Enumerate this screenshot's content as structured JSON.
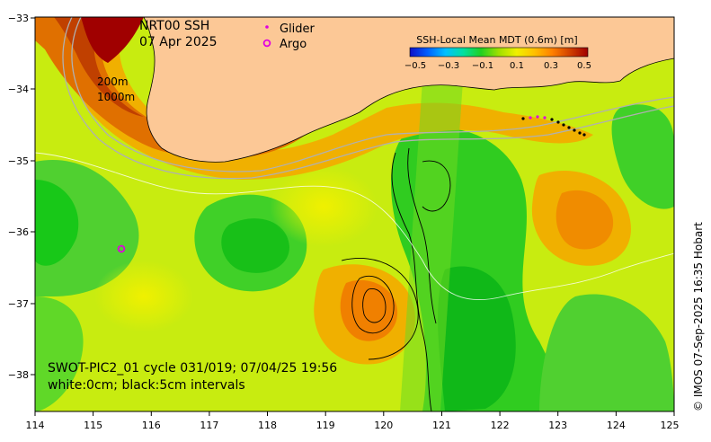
{
  "map": {
    "title_line1": "NRT00 SSH",
    "title_line2": "07 Apr 2025",
    "legend": {
      "glider_label": "Glider",
      "argo_label": "Argo",
      "glider_color": "#e000e0",
      "argo_color": "#e000e0"
    },
    "colorbar": {
      "title": "SSH-Local Mean MDT (0.6m) [m]",
      "tick_labels": [
        "−0.5",
        "−0.3",
        "−0.1",
        "0.1",
        "0.3",
        "0.5"
      ],
      "colors": [
        "#1010c8",
        "#0060ff",
        "#00c0ff",
        "#00e0a0",
        "#20d020",
        "#a0e000",
        "#f0f000",
        "#ffc000",
        "#ff8000",
        "#d04000",
        "#a00000"
      ]
    },
    "isobaths": {
      "label_1": "200m",
      "label_2": "1000m"
    },
    "x_axis": {
      "tick_labels": [
        "114",
        "115",
        "116",
        "117",
        "118",
        "119",
        "120",
        "121",
        "122",
        "123",
        "124",
        "125"
      ]
    },
    "y_axis": {
      "tick_labels": [
        "−33",
        "−34",
        "−35",
        "−36",
        "−37",
        "−38"
      ]
    },
    "caption_line1": "SWOT-PIC2_01 cycle 031/019; 07/04/25 19:56",
    "caption_line2": "white:0cm; black:5cm intervals",
    "credit": "© IMOS 07-Sep-2025 16:35 Hobart",
    "colors": {
      "land": "#fcc896",
      "ocean_green": "#18c818",
      "ocean_yellow": "#d8f000",
      "ocean_orange": "#f0a000",
      "ocean_red": "#c04000"
    }
  }
}
